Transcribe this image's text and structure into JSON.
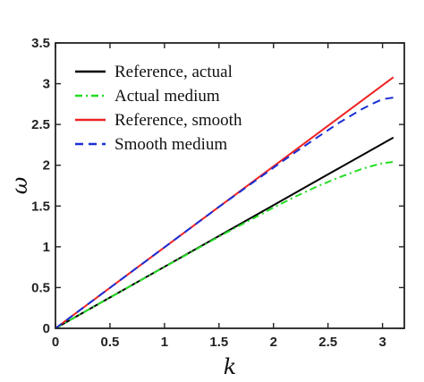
{
  "chart_data": {
    "type": "line",
    "xlabel": "k",
    "ylabel": "ω",
    "xlim": [
      0,
      3.2
    ],
    "ylim": [
      0,
      3.5
    ],
    "xticks": [
      "0",
      "0.5",
      "1",
      "1.5",
      "2",
      "2.5",
      "3"
    ],
    "yticks": [
      "0",
      "0.5",
      "1",
      "1.5",
      "2",
      "2.5",
      "3",
      "3.5"
    ],
    "grid": false,
    "legend_position": "top-left",
    "series": [
      {
        "name": "Reference, actual",
        "color": "#000000",
        "style": "solid",
        "x": [
          0,
          0.5,
          1.0,
          1.5,
          2.0,
          2.5,
          3.1
        ],
        "y": [
          0,
          0.378,
          0.755,
          1.133,
          1.51,
          1.888,
          2.34
        ]
      },
      {
        "name": "Actual medium",
        "color": "#22dd22",
        "style": "dashdot",
        "x": [
          0,
          0.5,
          1.0,
          1.5,
          2.0,
          2.2,
          2.4,
          2.6,
          2.8,
          2.9,
          3.0,
          3.1
        ],
        "y": [
          0,
          0.377,
          0.752,
          1.125,
          1.48,
          1.615,
          1.74,
          1.85,
          1.95,
          1.99,
          2.025,
          2.04
        ]
      },
      {
        "name": "Reference, smooth",
        "color": "#ee2222",
        "style": "solid",
        "x": [
          0,
          0.5,
          1.0,
          1.5,
          2.0,
          2.5,
          3.1
        ],
        "y": [
          0,
          0.497,
          0.994,
          1.49,
          1.987,
          2.484,
          3.08
        ]
      },
      {
        "name": "Smooth medium",
        "color": "#1a2fd6",
        "style": "dashed",
        "x": [
          0,
          0.5,
          1.0,
          1.5,
          2.0,
          2.2,
          2.4,
          2.6,
          2.8,
          2.9,
          3.0,
          3.1
        ],
        "y": [
          0,
          0.497,
          0.994,
          1.49,
          1.97,
          2.16,
          2.34,
          2.52,
          2.68,
          2.75,
          2.81,
          2.83
        ]
      }
    ]
  }
}
